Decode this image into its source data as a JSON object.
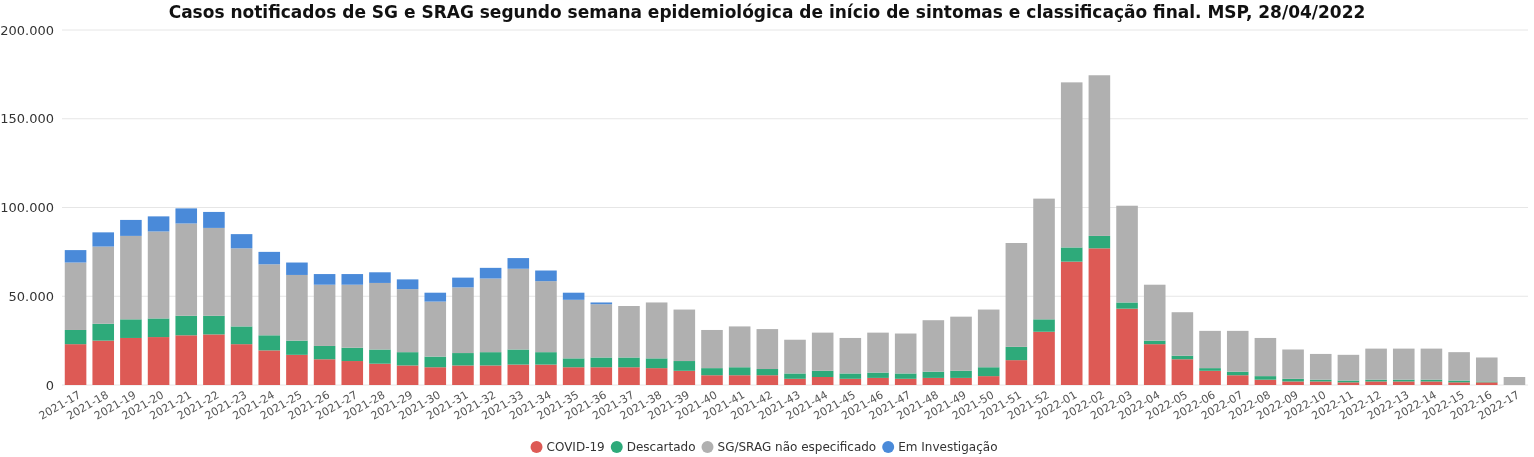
{
  "chart_data": {
    "type": "bar",
    "title": "Casos notificados de SG e SRAG segundo semana epidemiológica de início de sintomas e classificação final. MSP, 28/04/2022",
    "categories": [
      "2021-17",
      "2021-18",
      "2021-19",
      "2021-20",
      "2021-21",
      "2021-22",
      "2021-23",
      "2021-24",
      "2021-25",
      "2021-26",
      "2021-27",
      "2021-28",
      "2021-29",
      "2021-30",
      "2021-31",
      "2021-32",
      "2021-33",
      "2021-34",
      "2021-35",
      "2021-36",
      "2021-37",
      "2021-38",
      "2021-39",
      "2021-40",
      "2021-41",
      "2021-42",
      "2021-43",
      "2021-44",
      "2021-45",
      "2021-46",
      "2021-47",
      "2021-48",
      "2021-49",
      "2021-50",
      "2021-51",
      "2021-52",
      "2022-01",
      "2022-02",
      "2022-03",
      "2022-04",
      "2022-05",
      "2022-06",
      "2022-07",
      "2022-08",
      "2022-09",
      "2022-10",
      "2022-11",
      "2022-12",
      "2022-13",
      "2022-14",
      "2022-15",
      "2022-16",
      "2022-17"
    ],
    "stacked": true,
    "series": [
      {
        "name": "COVID-19",
        "color": "#dd5a55",
        "values": [
          23000,
          25000,
          26500,
          27000,
          28000,
          28500,
          23000,
          19500,
          17000,
          14500,
          13500,
          12000,
          11000,
          10000,
          11000,
          11000,
          11500,
          11500,
          10000,
          10000,
          10000,
          9500,
          8000,
          5500,
          5500,
          5500,
          3500,
          4500,
          3500,
          4000,
          3500,
          4000,
          4000,
          5000,
          14000,
          30000,
          69500,
          77000,
          43000,
          23000,
          14500,
          8000,
          5500,
          3000,
          2000,
          2000,
          1500,
          2000,
          2000,
          2000,
          1500,
          1500,
          0
        ]
      },
      {
        "name": "Descartado",
        "color": "#2eaa7a",
        "values": [
          8000,
          9500,
          10500,
          10500,
          11000,
          10500,
          10000,
          8500,
          8000,
          7500,
          7500,
          8000,
          7500,
          6000,
          7000,
          7500,
          8500,
          7000,
          5000,
          5500,
          5500,
          5500,
          5500,
          4000,
          4500,
          3500,
          3000,
          3500,
          3000,
          3000,
          3000,
          3500,
          4000,
          5000,
          7500,
          7000,
          8000,
          7000,
          3500,
          2000,
          2000,
          1500,
          2000,
          2000,
          1500,
          1000,
          1000,
          1000,
          1000,
          1000,
          1000,
          500,
          0
        ]
      },
      {
        "name": "SG/SRAG não especificado",
        "color": "#b0b0b0",
        "values": [
          38000,
          43500,
          47000,
          49000,
          52000,
          49500,
          44000,
          40000,
          37000,
          34500,
          35500,
          37500,
          35500,
          31000,
          37000,
          41500,
          45500,
          40000,
          33000,
          30000,
          29000,
          31500,
          29000,
          21500,
          23000,
          22500,
          19000,
          21500,
          20000,
          22500,
          22500,
          29000,
          30500,
          32500,
          58500,
          68000,
          93000,
          90500,
          54500,
          31500,
          24500,
          21000,
          23000,
          21500,
          16500,
          14500,
          14500,
          17500,
          17500,
          17500,
          16000,
          13500,
          4500
        ]
      },
      {
        "name": "Em Investigação",
        "color": "#4a8ad9",
        "values": [
          7000,
          8000,
          9000,
          8500,
          8500,
          9000,
          8000,
          7000,
          7000,
          6000,
          6000,
          6000,
          5500,
          5000,
          5500,
          6000,
          6000,
          6000,
          4000,
          1000,
          0,
          0,
          0,
          0,
          0,
          0,
          0,
          0,
          0,
          0,
          0,
          0,
          0,
          0,
          0,
          0,
          0,
          0,
          0,
          0,
          0,
          0,
          0,
          0,
          0,
          0,
          0,
          0,
          0,
          0,
          0,
          0,
          0
        ]
      }
    ],
    "ylim": [
      0,
      200000
    ],
    "yticks": [
      0,
      {
        "value": 50000,
        "label": "50.000"
      },
      {
        "value": 100000,
        "label": "100.000"
      },
      {
        "value": 150000,
        "label": "150.000"
      },
      {
        "value": 200000,
        "label": "200.000"
      }
    ],
    "grid": "y",
    "legend": "bottom",
    "marker": "circle"
  }
}
